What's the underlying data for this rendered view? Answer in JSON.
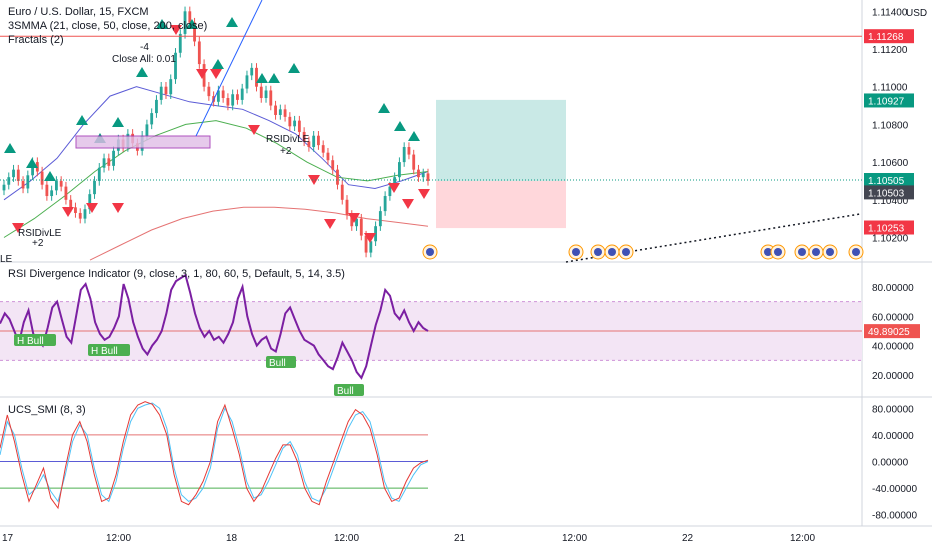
{
  "header": {
    "symbol_line": "Euro / U.S. Dollar, 15, FXCM",
    "ma_line": "3SMMA (21, close, 50, close, 200, close)",
    "fractals_line": "Fractals (2)"
  },
  "rsi_panel": {
    "title": "RSI Divergence Indicator (9, close, 3, 1, 80, 60, 5, Default, 5, 14, 3.5)"
  },
  "smi_panel": {
    "title": "UCS_SMI (8, 3)"
  },
  "colors": {
    "up_candle": "#26a69a",
    "down_candle": "#ef5350",
    "fractal_up": "#089981",
    "fractal_down": "#f23645",
    "ma_fast": "#5b5bd6",
    "ma_mid": "#4caf50",
    "ma_slow": "#e57373",
    "rsi_line": "#7b1fa2",
    "rsi_band": "#f3e5f5",
    "smi_fast": "#4fc3f7",
    "smi_slow": "#e53935",
    "bull_label": "#4caf50",
    "long_target": "#b2dfdb",
    "long_stop": "#ffcdd2"
  },
  "chart_data": [
    {
      "type": "candlestick",
      "title": "Euro / U.S. Dollar, 15, FXCM",
      "currency": "USD",
      "y_ticks": [
        "1.11400",
        "1.11200",
        "1.11000",
        "1.10800",
        "1.10600",
        "1.10400",
        "1.10200"
      ],
      "ylim": [
        1.1007,
        1.1146
      ],
      "price_labels": [
        {
          "value": "1.11268",
          "color": "#f23645"
        },
        {
          "value": "1.10927",
          "color": "#089981"
        },
        {
          "value": "1.10505",
          "color": "#089981"
        },
        {
          "value": "1.10503",
          "color": "#434651"
        },
        {
          "value": "1.10253",
          "color": "#f23645"
        }
      ],
      "annotations": [
        {
          "text": "-4"
        },
        {
          "text": "Close All: 0.01"
        },
        {
          "text": "RSIDivLE"
        },
        {
          "text": "+2"
        },
        {
          "text": "RSIDivLE"
        },
        {
          "text": "+2"
        },
        {
          "text": "LE"
        }
      ],
      "x_tick_labels": [
        "17",
        "12:00",
        "18",
        "12:00",
        "21",
        "12:00",
        "22",
        "12:00"
      ],
      "close_approx": [
        1.1048,
        1.1052,
        1.1056,
        1.105,
        1.1046,
        1.1053,
        1.106,
        1.1055,
        1.1048,
        1.1042,
        1.1045,
        1.105,
        1.1047,
        1.104,
        1.1036,
        1.1033,
        1.103,
        1.1035,
        1.1043,
        1.105,
        1.1057,
        1.1062,
        1.1058,
        1.1066,
        1.1072,
        1.1068,
        1.1075,
        1.107,
        1.1066,
        1.1074,
        1.108,
        1.1086,
        1.1093,
        1.11,
        1.1096,
        1.1104,
        1.1118,
        1.1128,
        1.114,
        1.1134,
        1.1124,
        1.1112,
        1.11,
        1.1095,
        1.1092,
        1.1098,
        1.1094,
        1.109,
        1.1096,
        1.1093,
        1.1099,
        1.1106,
        1.111,
        1.11,
        1.1094,
        1.1098,
        1.109,
        1.1085,
        1.1088,
        1.1084,
        1.1079,
        1.1082,
        1.1076,
        1.1071,
        1.1068,
        1.1074,
        1.1069,
        1.1065,
        1.1061,
        1.1056,
        1.1048,
        1.104,
        1.1032,
        1.1026,
        1.103,
        1.1021,
        1.1012,
        1.1018,
        1.1026,
        1.1034,
        1.1042,
        1.1047,
        1.1052,
        1.106,
        1.1068,
        1.1064,
        1.1056,
        1.1052,
        1.1054,
        1.105
      ],
      "ma_fast_approx": [
        1.104,
        1.105,
        1.1062,
        1.108,
        1.1095,
        1.11,
        1.1096,
        1.1092,
        1.109,
        1.1088,
        1.1082,
        1.1075,
        1.1062,
        1.1048,
        1.1046,
        1.105,
        1.1055
      ],
      "ma_mid_approx": [
        1.102,
        1.103,
        1.1042,
        1.1055,
        1.1066,
        1.1074,
        1.108,
        1.1082,
        1.1078,
        1.107,
        1.106,
        1.1052,
        1.105,
        1.1053,
        1.1055
      ],
      "ma_slow_approx": [
        1.1008,
        1.1016,
        1.1024,
        1.103,
        1.1034,
        1.1036,
        1.1036,
        1.1035,
        1.1033,
        1.103,
        1.1028,
        1.1026
      ],
      "position": {
        "entry": 1.105,
        "target": 1.1093,
        "stop": 1.1025
      }
    },
    {
      "type": "line",
      "title": "RSI Divergence Indicator (9, close, 3, 1, 80, 60, 5, Default, 5, 14, 3.5)",
      "y_ticks": [
        "80.00000",
        "60.00000",
        "40.00000",
        "20.00000"
      ],
      "ylim": [
        5,
        97
      ],
      "band": [
        30,
        70
      ],
      "midline": 50,
      "last_value": "49.89025",
      "labels": [
        "H Bull",
        "H Bull",
        "Bull",
        "Bull"
      ],
      "values_approx": [
        55,
        62,
        58,
        50,
        42,
        56,
        64,
        48,
        44,
        40,
        52,
        66,
        70,
        58,
        46,
        42,
        60,
        78,
        82,
        72,
        56,
        48,
        44,
        46,
        52,
        60,
        82,
        72,
        56,
        46,
        38,
        34,
        40,
        44,
        50,
        62,
        78,
        84,
        86,
        88,
        76,
        62,
        52,
        46,
        50,
        44,
        46,
        42,
        48,
        56,
        72,
        80,
        60,
        48,
        40,
        44,
        46,
        38,
        36,
        48,
        62,
        66,
        58,
        50,
        44,
        42,
        40,
        34,
        30,
        26,
        24,
        32,
        42,
        36,
        30,
        22,
        18,
        26,
        40,
        54,
        64,
        78,
        74,
        62,
        58,
        64,
        56,
        50,
        56,
        52,
        50
      ]
    },
    {
      "type": "line",
      "title": "UCS_SMI (8, 3)",
      "y_ticks": [
        "80.00000",
        "40.00000",
        "0.00000",
        "-40.00000",
        "-80.00000"
      ],
      "ylim": [
        -97,
        97
      ],
      "levels": [
        40,
        0,
        -40
      ],
      "series": [
        {
          "values_approx": [
            10,
            60,
            40,
            -10,
            -50,
            -40,
            -20,
            -45,
            -60,
            -20,
            30,
            55,
            40,
            -10,
            -50,
            -60,
            -30,
            20,
            60,
            80,
            85,
            88,
            80,
            50,
            -10,
            -50,
            -60,
            -55,
            -40,
            -10,
            50,
            80,
            60,
            20,
            -30,
            -55,
            -50,
            -30,
            -5,
            20,
            30,
            10,
            -30,
            -55,
            -60,
            -40,
            -10,
            20,
            50,
            70,
            75,
            60,
            20,
            -30,
            -55,
            -60,
            -40,
            -20,
            -5,
            0
          ]
        },
        {
          "values_approx": [
            20,
            70,
            30,
            -20,
            -60,
            -35,
            -10,
            -55,
            -70,
            -10,
            40,
            60,
            30,
            -20,
            -60,
            -55,
            -20,
            30,
            70,
            85,
            90,
            86,
            70,
            40,
            -20,
            -60,
            -65,
            -50,
            -30,
            0,
            60,
            85,
            50,
            10,
            -40,
            -60,
            -45,
            -20,
            5,
            25,
            25,
            0,
            -40,
            -60,
            -65,
            -30,
            0,
            30,
            60,
            78,
            70,
            50,
            10,
            -40,
            -60,
            -55,
            -30,
            -10,
            -2,
            2
          ]
        }
      ]
    }
  ]
}
